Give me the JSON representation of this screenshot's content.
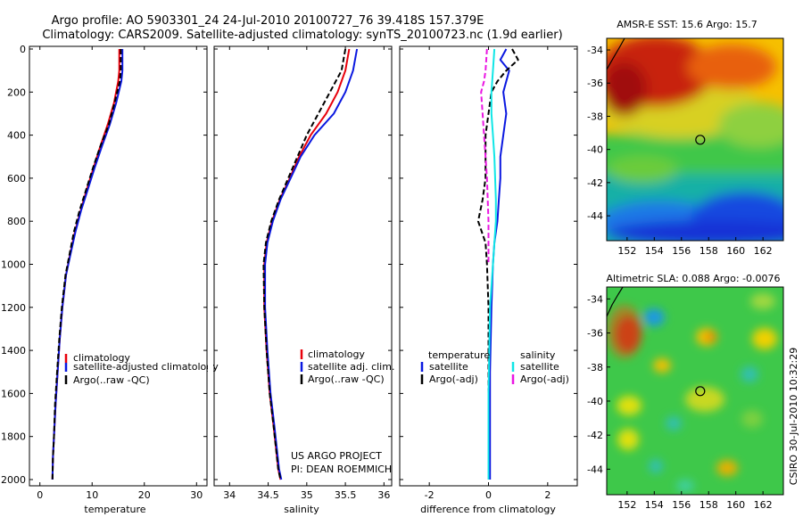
{
  "header": {
    "line1": "Argo profile: AO 5903301_24 24-Jul-2010 20100727_76 39.418S 157.379E",
    "line2": "Climatology: CARS2009. Satellite-adjusted climatology: synTS_20100723.nc (1.9d earlier)"
  },
  "credit": {
    "line1": "US ARGO PROJECT",
    "line2": "PI: DEAN ROEMMICH"
  },
  "side_stamp": "CSIRO 30-Jul-2010 10:32:29",
  "colors": {
    "red": "#e8000b",
    "blue": "#0a18e0",
    "black": "#000000",
    "cyan": "#10e6e6",
    "magenta": "#ea16e2"
  },
  "chart_data": [
    {
      "type": "line",
      "id": "temperature_profile",
      "xlabel": "temperature",
      "ylabel": "",
      "xlim": [
        -2,
        32
      ],
      "ylim": [
        2050,
        0
      ],
      "y_inverted": true,
      "xticks": [
        "0",
        "10",
        "20",
        "30"
      ],
      "yticks": [
        "0",
        "200",
        "400",
        "600",
        "800",
        "1000",
        "1200",
        "1400",
        "1600",
        "1800",
        "2000"
      ],
      "legend": [
        "climatology",
        "satellite-adjusted climatology",
        "Argo(..raw -QC)"
      ],
      "legend_position": "lower-left",
      "series": [
        {
          "name": "climatology",
          "color": "#e8000b",
          "dashed": false,
          "x": [
            15.2,
            15.2,
            15.0,
            14.2,
            13.0,
            11.6,
            10.3,
            9.0,
            7.8,
            6.7,
            5.8,
            5.0,
            4.3,
            3.8,
            3.4,
            3.0,
            2.7,
            2.5,
            2.4
          ],
          "y": [
            0,
            100,
            150,
            250,
            350,
            450,
            550,
            650,
            750,
            850,
            950,
            1050,
            1200,
            1350,
            1500,
            1650,
            1800,
            1900,
            2000
          ]
        },
        {
          "name": "satellite-adjusted climatology",
          "color": "#0a18e0",
          "dashed": false,
          "x": [
            15.8,
            15.8,
            15.6,
            14.6,
            13.4,
            11.9,
            10.5,
            9.2,
            7.9,
            6.8,
            5.9,
            5.0,
            4.3,
            3.8,
            3.4,
            3.0,
            2.7,
            2.5,
            2.4
          ],
          "y": [
            0,
            100,
            150,
            250,
            350,
            450,
            550,
            650,
            750,
            850,
            950,
            1050,
            1200,
            1350,
            1500,
            1650,
            1800,
            1900,
            2000
          ]
        },
        {
          "name": "Argo(..raw -QC)",
          "color": "#000000",
          "dashed": true,
          "x": [
            15.5,
            15.5,
            15.3,
            14.3,
            13.2,
            11.6,
            10.2,
            8.9,
            7.6,
            6.5,
            5.7,
            4.9,
            4.2,
            3.7,
            3.3,
            2.9,
            2.7,
            2.5,
            2.4
          ],
          "y": [
            0,
            100,
            150,
            250,
            350,
            450,
            550,
            650,
            750,
            850,
            950,
            1050,
            1200,
            1350,
            1500,
            1650,
            1800,
            1900,
            2000
          ]
        }
      ]
    },
    {
      "type": "line",
      "id": "salinity_profile",
      "xlabel": "salinity",
      "ylabel": "",
      "xlim": [
        33.8,
        36.1
      ],
      "ylim": [
        2050,
        0
      ],
      "y_inverted": true,
      "xticks": [
        "34",
        "34.5",
        "35",
        "35.5",
        "36"
      ],
      "legend": [
        "climatology",
        "satellite adj. clim.",
        "Argo(..raw -QC)"
      ],
      "legend_position": "lower-left",
      "series": [
        {
          "name": "climatology",
          "color": "#e8000b",
          "dashed": false,
          "x": [
            35.55,
            35.5,
            35.4,
            35.25,
            35.05,
            34.9,
            34.78,
            34.65,
            34.55,
            34.48,
            34.45,
            34.45,
            34.48,
            34.52,
            34.57,
            34.6,
            34.63,
            34.66
          ],
          "y": [
            0,
            100,
            200,
            300,
            400,
            500,
            600,
            700,
            800,
            900,
            1000,
            1200,
            1400,
            1600,
            1750,
            1850,
            1950,
            2000
          ]
        },
        {
          "name": "satellite adj. clim.",
          "color": "#0a18e0",
          "dashed": false,
          "x": [
            35.65,
            35.6,
            35.5,
            35.35,
            35.1,
            34.92,
            34.79,
            34.66,
            34.56,
            34.49,
            34.46,
            34.46,
            34.49,
            34.53,
            34.58,
            34.61,
            34.64,
            34.67
          ],
          "y": [
            0,
            100,
            200,
            300,
            400,
            500,
            600,
            700,
            800,
            900,
            1000,
            1200,
            1400,
            1600,
            1750,
            1850,
            1950,
            2000
          ]
        },
        {
          "name": "Argo(..raw -QC)",
          "color": "#000000",
          "dashed": true,
          "x": [
            35.5,
            35.45,
            35.3,
            35.15,
            35.0,
            34.88,
            34.76,
            34.64,
            34.54,
            34.47,
            34.44,
            34.45,
            34.48,
            34.52,
            34.57,
            34.6,
            34.63,
            34.66
          ],
          "y": [
            0,
            100,
            200,
            300,
            400,
            500,
            600,
            700,
            800,
            900,
            1000,
            1200,
            1400,
            1600,
            1750,
            1850,
            1950,
            2000
          ]
        }
      ]
    },
    {
      "type": "line",
      "id": "difference_profile",
      "xlabel": "difference from climatology",
      "ylabel": "",
      "xlim": [
        -3,
        3
      ],
      "ylim": [
        2050,
        0
      ],
      "y_inverted": true,
      "xticks": [
        "-2",
        "0",
        "2"
      ],
      "legend_title_left": "temperature",
      "legend_title_right": "salinity",
      "legend": [
        "satellite",
        "Argo(-adj)",
        "satellite",
        "Argo(-adj)"
      ],
      "legend_position": "lower-center",
      "series": [
        {
          "name": "temperature satellite",
          "color": "#0a18e0",
          "dashed": false,
          "x": [
            0.6,
            0.4,
            0.7,
            0.5,
            0.6,
            0.5,
            0.4,
            0.4,
            0.35,
            0.3,
            0.2,
            0.15,
            0.1,
            0.05,
            0.05,
            0.05
          ],
          "y": [
            0,
            50,
            100,
            200,
            300,
            400,
            500,
            600,
            700,
            800,
            900,
            1000,
            1200,
            1500,
            1800,
            2000
          ]
        },
        {
          "name": "temperature Argo(-adj)",
          "color": "#000000",
          "dashed": true,
          "x": [
            0.8,
            1.0,
            0.6,
            0.3,
            0.1,
            0.0,
            -0.1,
            -0.1,
            -0.2,
            -0.35,
            -0.1,
            -0.05,
            0.0,
            0.0,
            0.0
          ],
          "y": [
            0,
            50,
            100,
            150,
            200,
            300,
            400,
            600,
            700,
            800,
            900,
            1000,
            1200,
            1600,
            2000
          ]
        },
        {
          "name": "salinity satellite",
          "color": "#10e6e6",
          "dashed": false,
          "x": [
            0.2,
            0.15,
            0.1,
            0.1,
            0.15,
            0.2,
            0.25,
            0.25,
            0.2,
            0.15,
            0.05,
            0.0,
            0.0
          ],
          "y": [
            0,
            100,
            200,
            300,
            400,
            500,
            700,
            800,
            900,
            1000,
            1200,
            1600,
            2000
          ]
        },
        {
          "name": "salinity Argo(-adj)",
          "color": "#ea16e2",
          "dashed": true,
          "x": [
            -0.05,
            -0.1,
            -0.15,
            -0.25,
            -0.2,
            -0.15,
            -0.1,
            -0.05,
            0.0,
            0.0
          ],
          "y": [
            0,
            100,
            150,
            200,
            300,
            400,
            500,
            600,
            800,
            1000
          ]
        }
      ]
    },
    {
      "type": "heatmap",
      "id": "sst_map",
      "title": "AMSR-E SST: 15.6  Argo: 15.7",
      "xlim": [
        150.5,
        163.5
      ],
      "ylim": [
        -45.5,
        -33.3
      ],
      "xticks": [
        "152",
        "154",
        "156",
        "158",
        "160",
        "162"
      ],
      "yticks": [
        "-34",
        "-36",
        "-38",
        "-40",
        "-42",
        "-44"
      ],
      "marker": {
        "lon": 157.379,
        "lat": -39.418
      }
    },
    {
      "type": "heatmap",
      "id": "sla_map",
      "title": "Altimetric SLA: 0.088  Argo: -0.0076",
      "xlim": [
        150.5,
        163.5
      ],
      "ylim": [
        -45.5,
        -33.3
      ],
      "xticks": [
        "152",
        "154",
        "156",
        "158",
        "160",
        "162"
      ],
      "yticks": [
        "-34",
        "-36",
        "-38",
        "-40",
        "-42",
        "-44"
      ],
      "marker": {
        "lon": 157.379,
        "lat": -39.418
      }
    }
  ]
}
